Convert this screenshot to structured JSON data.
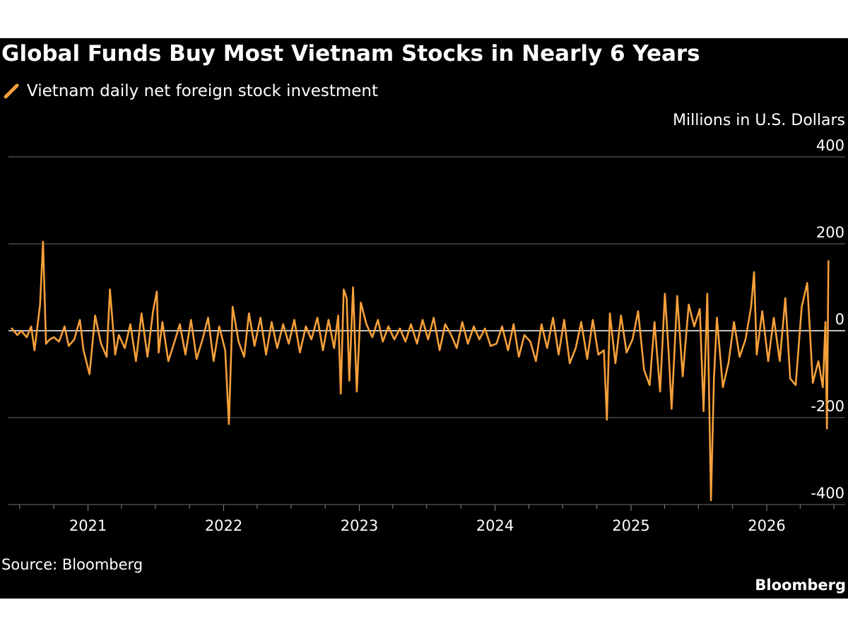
{
  "brand": "Bloomberg",
  "source": "Source: Bloomberg",
  "chart_data": {
    "type": "line",
    "title": "Global Funds Buy Most Vietnam Stocks in Nearly 6 Years",
    "ylabel": "Millions in U.S. Dollars",
    "xlabel": "",
    "legend": "top-left",
    "grid": true,
    "ylim": [
      -400,
      400
    ],
    "xlim": [
      "2020-06-01",
      "2026-07-31"
    ],
    "y_ticks": [
      400,
      200,
      0,
      -200,
      -400
    ],
    "x_ticks": [
      "2021",
      "2022",
      "2023",
      "2024",
      "2025",
      "2026"
    ],
    "series": [
      {
        "name": "Vietnam daily net foreign stock investment",
        "color": "#f5a03a",
        "x": [
          "2020-06-10",
          "2020-06-25",
          "2020-07-05",
          "2020-07-20",
          "2020-08-01",
          "2020-08-10",
          "2020-08-25",
          "2020-09-02",
          "2020-09-10",
          "2020-09-20",
          "2020-10-01",
          "2020-10-15",
          "2020-10-30",
          "2020-11-10",
          "2020-11-25",
          "2020-12-10",
          "2020-12-20",
          "2021-01-05",
          "2021-01-20",
          "2021-02-05",
          "2021-02-20",
          "2021-03-01",
          "2021-03-15",
          "2021-03-25",
          "2021-04-10",
          "2021-04-25",
          "2021-05-10",
          "2021-05-25",
          "2021-06-10",
          "2021-06-25",
          "2021-07-05",
          "2021-07-10",
          "2021-07-20",
          "2021-08-05",
          "2021-08-20",
          "2021-09-05",
          "2021-09-20",
          "2021-10-05",
          "2021-10-20",
          "2021-11-05",
          "2021-11-20",
          "2021-12-05",
          "2021-12-20",
          "2022-01-05",
          "2022-01-15",
          "2022-01-25",
          "2022-02-10",
          "2022-02-25",
          "2022-03-10",
          "2022-03-25",
          "2022-04-10",
          "2022-04-25",
          "2022-05-10",
          "2022-05-25",
          "2022-06-10",
          "2022-06-25",
          "2022-07-10",
          "2022-07-25",
          "2022-08-10",
          "2022-08-25",
          "2022-09-10",
          "2022-09-25",
          "2022-10-10",
          "2022-10-25",
          "2022-11-05",
          "2022-11-12",
          "2022-11-20",
          "2022-11-28",
          "2022-12-05",
          "2022-12-15",
          "2022-12-25",
          "2023-01-05",
          "2023-01-20",
          "2023-02-05",
          "2023-02-20",
          "2023-03-05",
          "2023-03-20",
          "2023-04-05",
          "2023-04-20",
          "2023-05-05",
          "2023-05-20",
          "2023-06-05",
          "2023-06-20",
          "2023-07-05",
          "2023-07-20",
          "2023-08-05",
          "2023-08-20",
          "2023-09-05",
          "2023-09-20",
          "2023-10-05",
          "2023-10-20",
          "2023-11-05",
          "2023-11-20",
          "2023-12-05",
          "2023-12-20",
          "2024-01-05",
          "2024-01-20",
          "2024-02-05",
          "2024-02-20",
          "2024-03-05",
          "2024-03-20",
          "2024-04-05",
          "2024-04-20",
          "2024-05-05",
          "2024-05-20",
          "2024-06-05",
          "2024-06-20",
          "2024-07-05",
          "2024-07-20",
          "2024-08-05",
          "2024-08-20",
          "2024-09-05",
          "2024-09-20",
          "2024-10-05",
          "2024-10-20",
          "2024-10-28",
          "2024-11-05",
          "2024-11-20",
          "2024-12-05",
          "2024-12-20",
          "2025-01-05",
          "2025-01-20",
          "2025-02-05",
          "2025-02-20",
          "2025-03-05",
          "2025-03-20",
          "2025-04-02",
          "2025-04-12",
          "2025-04-20",
          "2025-05-05",
          "2025-05-20",
          "2025-06-05",
          "2025-06-20",
          "2025-07-05",
          "2025-07-15",
          "2025-07-25",
          "2025-08-04",
          "2025-08-12",
          "2025-08-20",
          "2025-09-05",
          "2025-09-20",
          "2025-10-05",
          "2025-10-20",
          "2025-11-05",
          "2025-11-20",
          "2025-11-28",
          "2025-12-05",
          "2025-12-20",
          "2026-01-05",
          "2026-01-20",
          "2026-02-05",
          "2026-02-20",
          "2026-03-05",
          "2026-03-20",
          "2026-04-05",
          "2026-04-20",
          "2026-05-05",
          "2026-05-20",
          "2026-06-01",
          "2026-06-08",
          "2026-06-12",
          "2026-06-16"
        ],
        "values": [
          5,
          -10,
          0,
          -15,
          10,
          -45,
          60,
          205,
          -30,
          -20,
          -15,
          -25,
          10,
          -35,
          -20,
          25,
          -45,
          -100,
          35,
          -30,
          -60,
          95,
          -55,
          -10,
          -40,
          15,
          -70,
          40,
          -60,
          45,
          90,
          -50,
          20,
          -70,
          -30,
          15,
          -55,
          25,
          -65,
          -20,
          30,
          -70,
          10,
          -45,
          -215,
          55,
          -25,
          -60,
          40,
          -35,
          30,
          -55,
          20,
          -40,
          15,
          -30,
          25,
          -50,
          10,
          -20,
          30,
          -45,
          25,
          -40,
          35,
          -145,
          95,
          75,
          -115,
          100,
          -140,
          65,
          15,
          -15,
          25,
          -25,
          10,
          -20,
          5,
          -25,
          15,
          -30,
          25,
          -20,
          30,
          -45,
          15,
          -10,
          -40,
          20,
          -30,
          10,
          -20,
          5,
          -35,
          -30,
          10,
          -45,
          15,
          -60,
          -10,
          -25,
          -70,
          15,
          -40,
          30,
          -55,
          25,
          -75,
          -40,
          20,
          -65,
          25,
          -55,
          -45,
          -205,
          40,
          -75,
          35,
          -50,
          -20,
          45,
          -90,
          -125,
          20,
          -140,
          85,
          -50,
          -180,
          80,
          -105,
          60,
          10,
          50,
          -185,
          85,
          -390,
          -110,
          30,
          -130,
          -75,
          20,
          -60,
          -20,
          55,
          135,
          -55,
          45,
          -70,
          30,
          -70,
          75,
          -110,
          -125,
          55,
          110,
          -120,
          -70,
          -130,
          20,
          -225,
          160
        ]
      }
    ]
  }
}
